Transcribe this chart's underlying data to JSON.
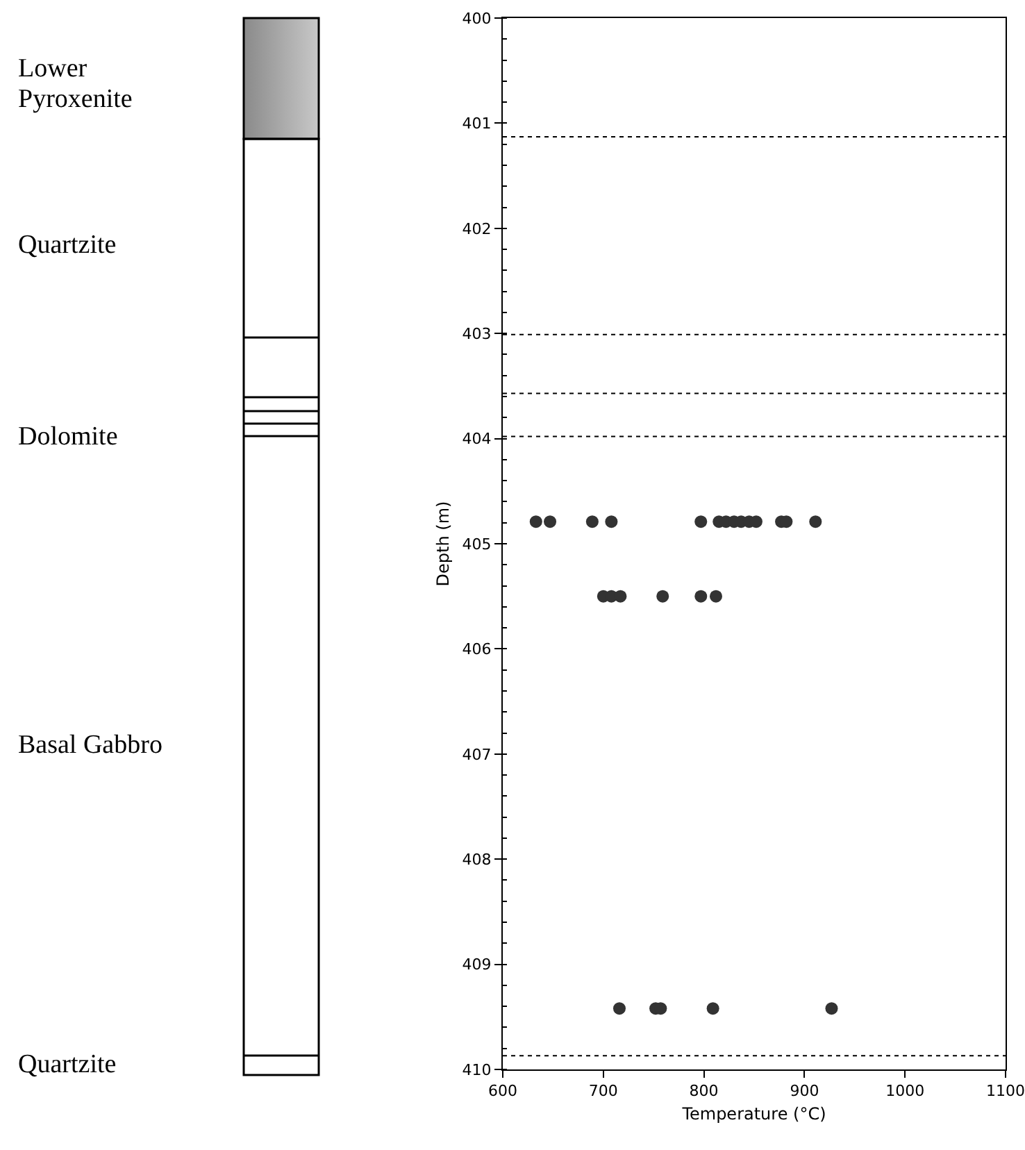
{
  "chart_data": {
    "type": "scatter",
    "xlabel": "Temperature (°C)",
    "ylabel": "Depth (m)",
    "marker": "circle",
    "grid": false,
    "xlim": [
      600,
      1100
    ],
    "xticks": [
      600,
      700,
      800,
      900,
      1000,
      1100
    ],
    "ylim": [
      410,
      400
    ],
    "yticks": [
      400,
      401,
      402,
      403,
      404,
      405,
      406,
      407,
      408,
      409,
      410
    ],
    "series": [
      {
        "color": "#333333",
        "x": [
          633,
          647,
          689,
          708,
          797,
          815,
          822,
          830,
          837,
          845,
          852,
          877,
          882,
          911,
          700,
          708,
          717,
          759,
          797,
          812,
          716,
          752,
          757,
          809,
          927
        ],
        "values": [
          404.79,
          404.79,
          404.79,
          404.79,
          404.79,
          404.79,
          404.79,
          404.79,
          404.79,
          404.79,
          404.79,
          404.79,
          404.79,
          404.79,
          405.5,
          405.5,
          405.5,
          405.5,
          405.5,
          405.5,
          409.42,
          409.42,
          409.42,
          409.42,
          409.42
        ]
      }
    ],
    "ref_lines": [
      {
        "axis": "y",
        "value": 401.13,
        "color": "#000000",
        "line_style": "dotted"
      },
      {
        "axis": "y",
        "value": 403.01,
        "color": "#000000",
        "line_style": "dotted"
      },
      {
        "axis": "y",
        "value": 403.57,
        "color": "#000000",
        "line_style": "dotted"
      },
      {
        "axis": "y",
        "value": 403.98,
        "color": "#000000",
        "line_style": "dotted"
      },
      {
        "axis": "y",
        "value": 409.87,
        "color": "#000000",
        "line_style": "dotted"
      }
    ],
    "annotations": [
      "Lower Pyroxenite",
      "Quartzite",
      "Dolomite",
      "Basal Gabbro",
      "Quartzite"
    ]
  }
}
